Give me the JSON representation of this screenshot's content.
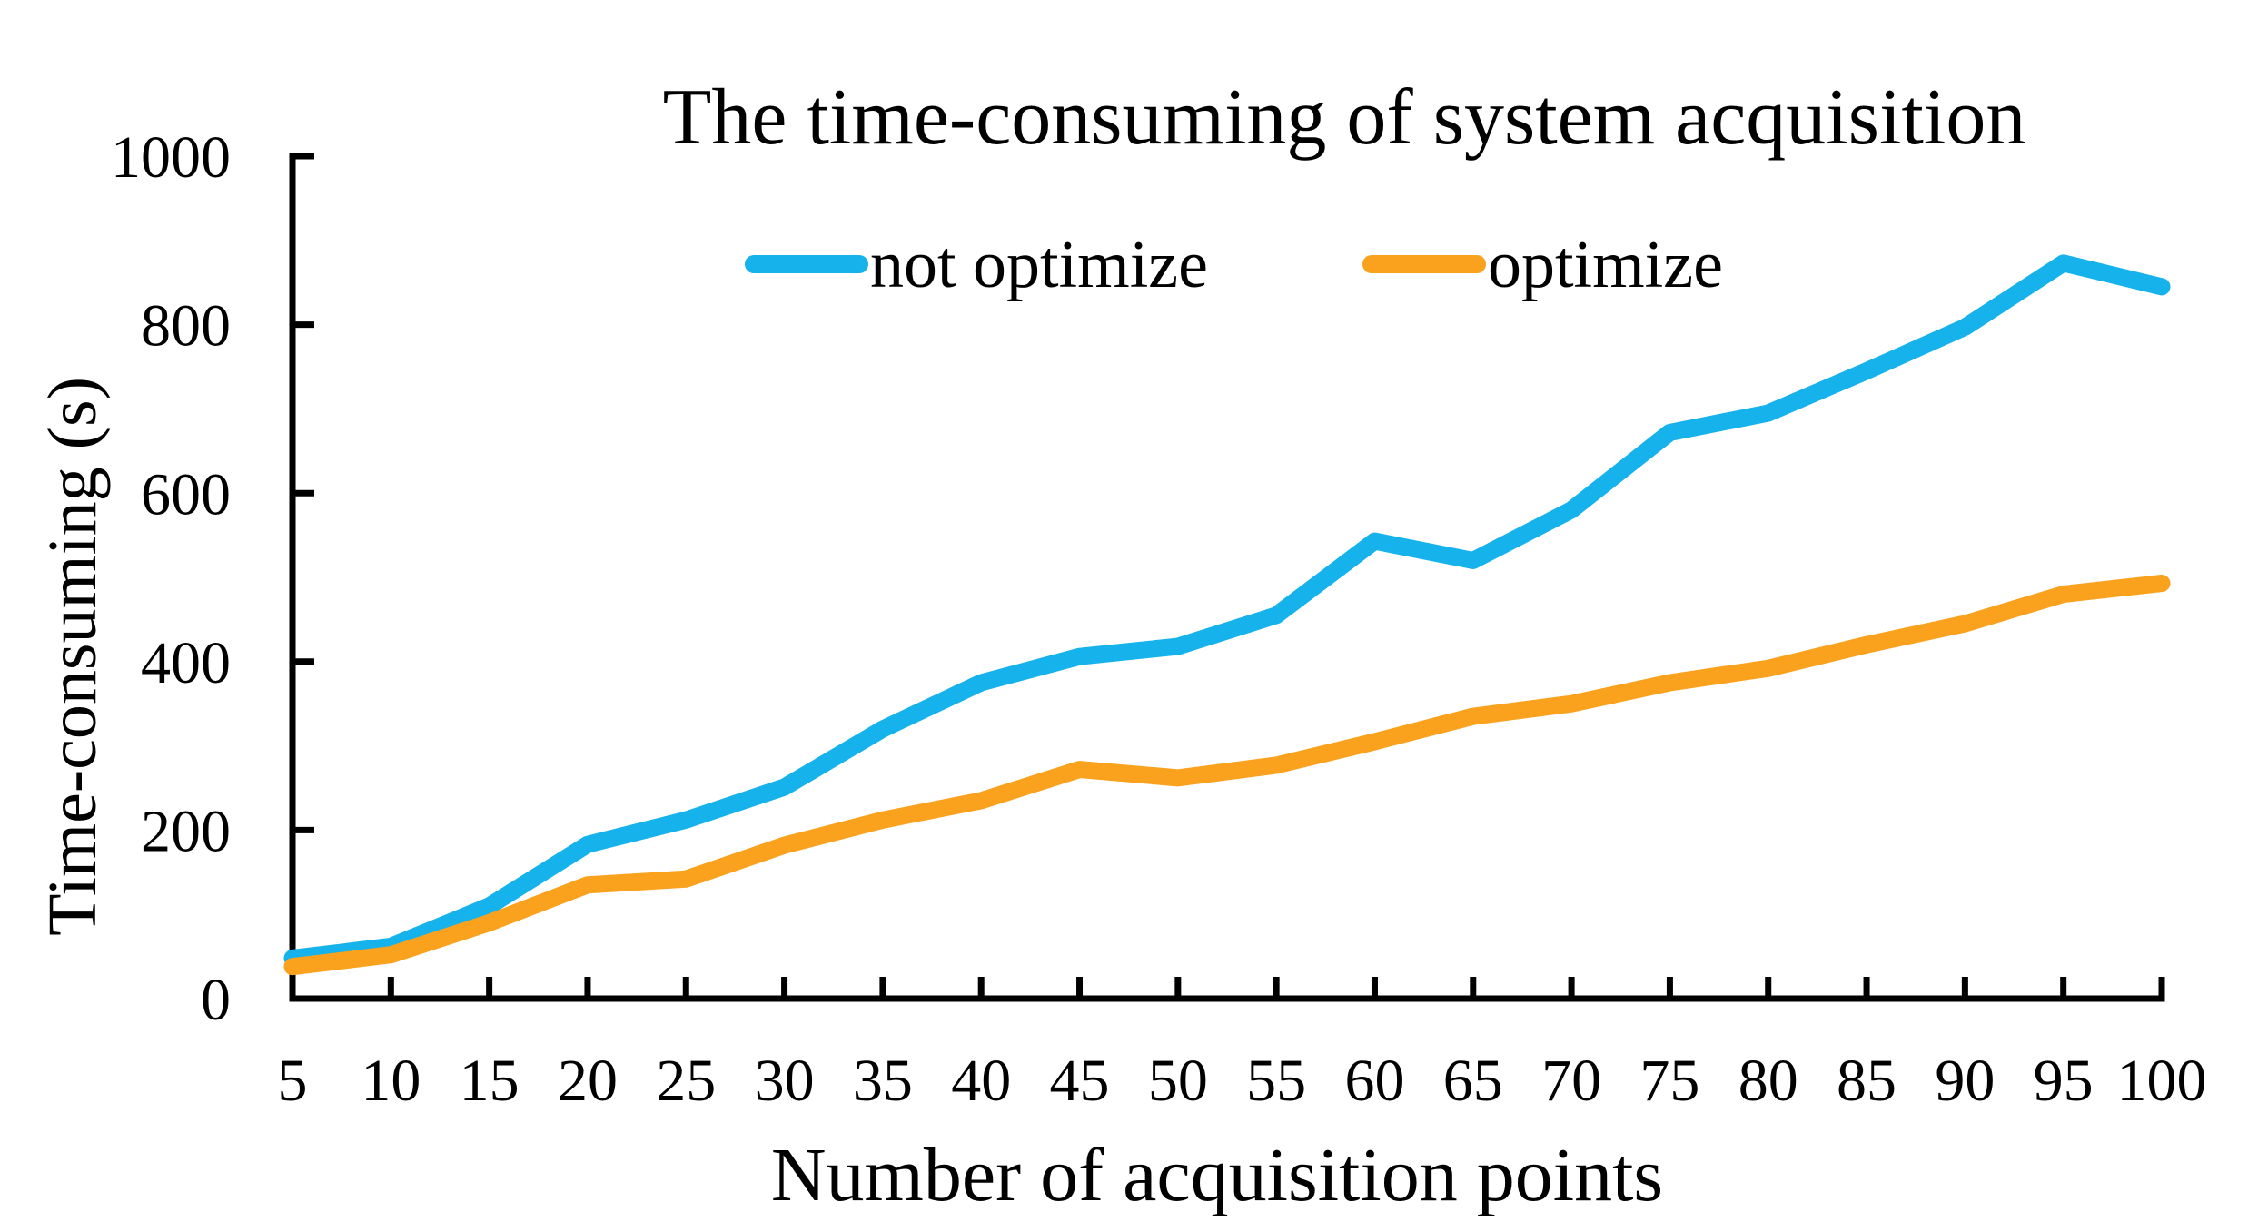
{
  "title": "The time-consuming of system acquisition",
  "legend": [
    {
      "label": "not optimize",
      "color": "#15B2EC"
    },
    {
      "label": "optimize",
      "color": "#FAA21D"
    }
  ],
  "axis_color": "#000000",
  "chart_data": {
    "type": "line",
    "title": "The time-consuming of system acquisition",
    "xlabel": "Number of acquisition points",
    "ylabel": "Time-consuming (s)",
    "categories": [
      5,
      10,
      15,
      20,
      25,
      30,
      35,
      40,
      45,
      50,
      55,
      60,
      65,
      70,
      75,
      80,
      85,
      90,
      95,
      100
    ],
    "series": [
      {
        "name": "not optimize",
        "color": "#15B2EC",
        "values": [
          48,
          62,
          110,
          183,
          212,
          251,
          320,
          375,
          406,
          418,
          455,
          543,
          520,
          580,
          672,
          695,
          745,
          797,
          873,
          845
        ]
      },
      {
        "name": "optimize",
        "color": "#FAA21D",
        "values": [
          38,
          52,
          90,
          135,
          142,
          182,
          212,
          235,
          272,
          262,
          277,
          305,
          335,
          350,
          375,
          392,
          420,
          445,
          480,
          493
        ]
      }
    ],
    "ylim": [
      0,
      1000
    ],
    "yticks": [
      0,
      200,
      400,
      600,
      800,
      1000
    ],
    "grid": false,
    "legend_position": "top"
  }
}
